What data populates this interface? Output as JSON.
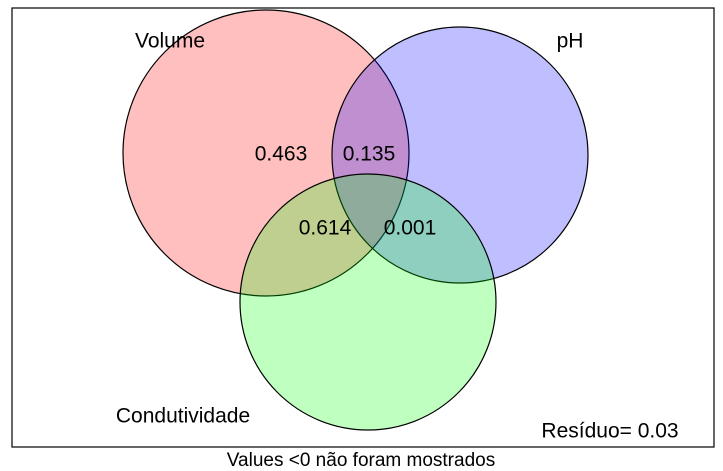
{
  "sets": [
    {
      "label": "Volume"
    },
    {
      "label": "pH"
    },
    {
      "label": "Condutividade"
    }
  ],
  "fractions": [
    0.463,
    0.135,
    0.614,
    0.001
  ],
  "residual": "Resíduo= 0.03",
  "footnote": "Values <0 não foram mostrados"
}
